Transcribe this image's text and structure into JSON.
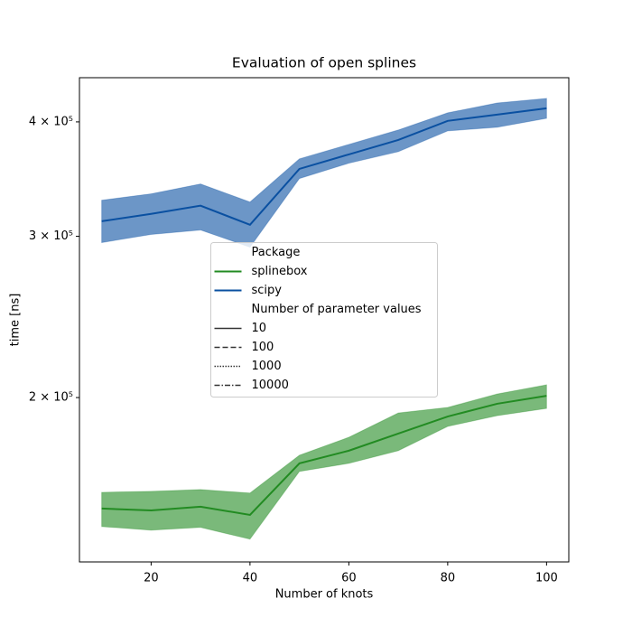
{
  "chart_data": {
    "type": "line",
    "title": "Evaluation of open splines",
    "xlabel": "Number of knots",
    "ylabel": "time [ns]",
    "x": [
      10,
      20,
      30,
      40,
      50,
      60,
      70,
      80,
      90,
      100
    ],
    "xlim": [
      5.5,
      104.5
    ],
    "xticks": [
      20,
      40,
      60,
      80,
      100
    ],
    "ylim": [
      132300,
      447000
    ],
    "yscale": "log",
    "yticks": [
      {
        "value": 200000,
        "label": "2 × 10⁵"
      },
      {
        "value": 300000,
        "label": "3 × 10⁵"
      },
      {
        "value": 400000,
        "label": "4 × 10⁵"
      }
    ],
    "series": [
      {
        "name": "splinebox",
        "color": "#228b22",
        "values": [
          151300,
          150600,
          152000,
          148900,
          169500,
          175000,
          182700,
          190700,
          196900,
          200900
        ],
        "upper": [
          157600,
          158000,
          158700,
          157300,
          173000,
          181000,
          192400,
          195100,
          201800,
          206500
        ],
        "lower": [
          144600,
          143300,
          144300,
          140100,
          166100,
          169500,
          175000,
          186000,
          191100,
          194600
        ]
      },
      {
        "name": "scipy",
        "color": "#0a50a1",
        "values": [
          311600,
          317400,
          324000,
          308800,
          355400,
          368600,
          382200,
          401000,
          407400,
          413900
        ],
        "upper": [
          328500,
          333800,
          342200,
          327000,
          364500,
          378000,
          391900,
          409200,
          419500,
          424300
        ],
        "lower": [
          295300,
          301400,
          304800,
          291900,
          346900,
          360500,
          371100,
          391000,
          394600,
          403600
        ]
      }
    ],
    "legend": {
      "position": "center",
      "title": "Package",
      "style_title": "Number of parameter values",
      "styles": [
        {
          "label": "10",
          "dash": "solid"
        },
        {
          "label": "100",
          "dash": "dashed"
        },
        {
          "label": "1000",
          "dash": "dotted"
        },
        {
          "label": "10000",
          "dash": "dashdot"
        }
      ]
    }
  }
}
